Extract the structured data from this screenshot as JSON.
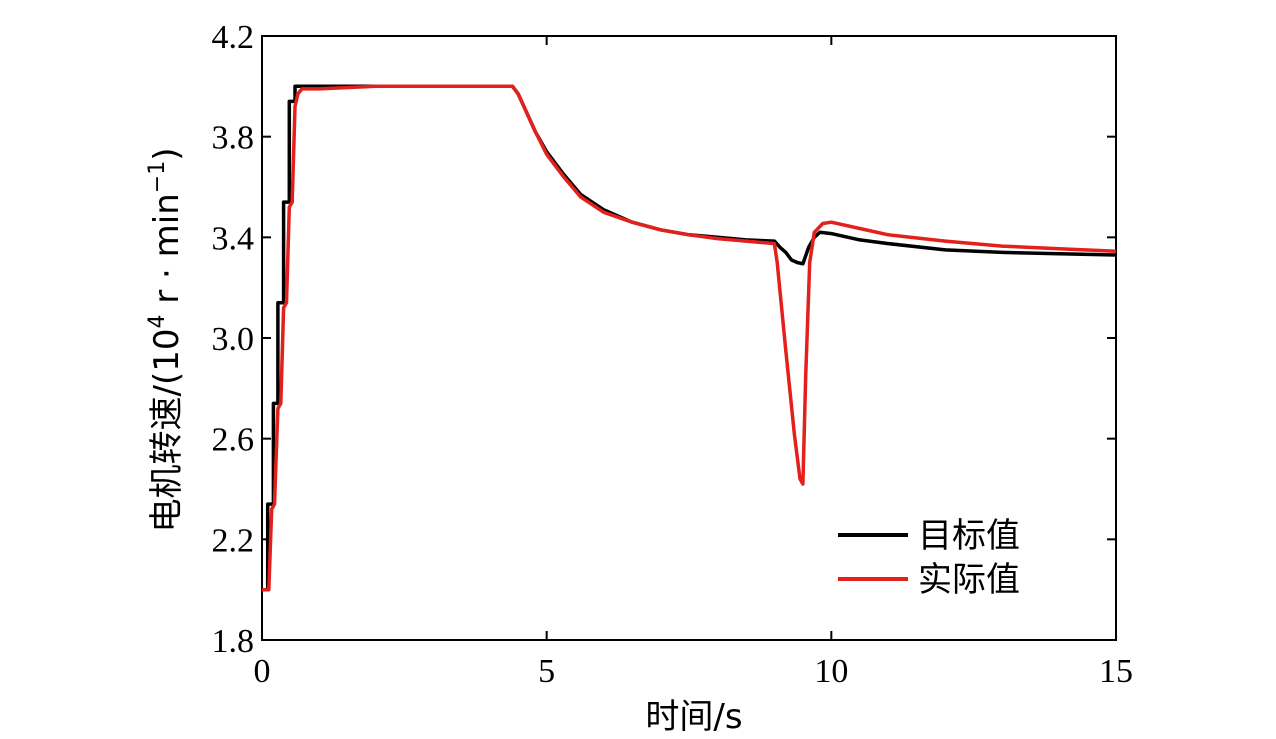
{
  "chart_data": {
    "type": "line",
    "xlabel": "时间/s",
    "ylabel": {
      "prefix": "电机转速/(10",
      "exp1": "4",
      "mid": " r · min",
      "exp2": "−1",
      "suffix": ")"
    },
    "xlim": [
      0,
      15
    ],
    "ylim": [
      1.8,
      4.2
    ],
    "xticks": [
      "0",
      "5",
      "10",
      "15"
    ],
    "yticks": [
      "1.8",
      "2.2",
      "2.6",
      "3.0",
      "3.4",
      "3.8",
      "4.2"
    ],
    "grid": false,
    "legend_position": "bottom-right",
    "series": [
      {
        "name": "目标值",
        "color": "#000000",
        "x": [
          0,
          0.1,
          0.1,
          0.2,
          0.2,
          0.28,
          0.28,
          0.38,
          0.38,
          0.48,
          0.48,
          0.58,
          0.58,
          4.4,
          4.5,
          4.6,
          4.7,
          4.8,
          5.0,
          5.3,
          5.6,
          6.0,
          6.5,
          7.0,
          7.5,
          8.0,
          8.5,
          9.0,
          9.1,
          9.2,
          9.3,
          9.4,
          9.5,
          9.6,
          9.7,
          9.8,
          10.0,
          10.5,
          11.0,
          12.0,
          13.0,
          14.0,
          15.0
        ],
        "y": [
          2.0,
          2.0,
          2.34,
          2.34,
          2.74,
          2.74,
          3.14,
          3.14,
          3.54,
          3.54,
          3.94,
          3.94,
          4.0,
          4.0,
          3.97,
          3.92,
          3.87,
          3.82,
          3.74,
          3.65,
          3.57,
          3.51,
          3.46,
          3.43,
          3.41,
          3.4,
          3.39,
          3.385,
          3.36,
          3.34,
          3.31,
          3.3,
          3.295,
          3.36,
          3.4,
          3.42,
          3.415,
          3.39,
          3.375,
          3.35,
          3.34,
          3.335,
          3.33
        ]
      },
      {
        "name": "实际值",
        "color": "#e3201b",
        "x": [
          0,
          0.12,
          0.17,
          0.22,
          0.28,
          0.33,
          0.38,
          0.43,
          0.48,
          0.53,
          0.58,
          0.63,
          0.7,
          1.0,
          2.0,
          3.0,
          4.4,
          4.5,
          4.6,
          4.7,
          4.8,
          5.0,
          5.3,
          5.6,
          6.0,
          6.5,
          7.0,
          7.5,
          8.0,
          8.5,
          9.0,
          9.05,
          9.2,
          9.35,
          9.45,
          9.5,
          9.55,
          9.62,
          9.7,
          9.85,
          10.0,
          10.5,
          11.0,
          12.0,
          13.0,
          14.0,
          15.0
        ],
        "y": [
          2.0,
          2.0,
          2.32,
          2.34,
          2.72,
          2.74,
          3.12,
          3.14,
          3.52,
          3.54,
          3.92,
          3.97,
          3.99,
          3.99,
          4.0,
          4.0,
          4.0,
          3.97,
          3.92,
          3.87,
          3.82,
          3.73,
          3.64,
          3.56,
          3.5,
          3.46,
          3.43,
          3.41,
          3.395,
          3.385,
          3.375,
          3.3,
          2.95,
          2.62,
          2.44,
          2.42,
          2.85,
          3.3,
          3.42,
          3.455,
          3.46,
          3.435,
          3.41,
          3.385,
          3.365,
          3.355,
          3.345
        ]
      }
    ]
  }
}
